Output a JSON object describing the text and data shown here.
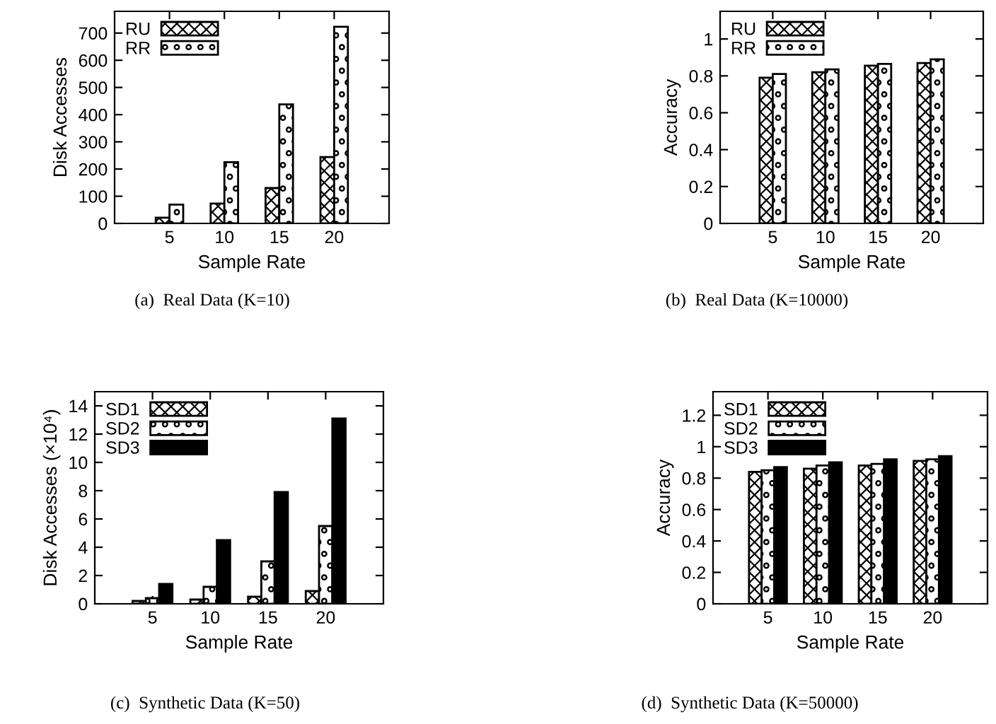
{
  "chart_data": [
    {
      "type": "bar",
      "xlabel": "Sample Rate",
      "ylabel": "Disk Accesses",
      "x": [
        5,
        10,
        15,
        20
      ],
      "xlim": [
        0,
        25
      ],
      "xticks": [
        5,
        10,
        15,
        20
      ],
      "ylim": [
        0,
        780
      ],
      "yticks": [
        0,
        100,
        200,
        300,
        400,
        500,
        600,
        700
      ],
      "grid": false,
      "legend": "top left",
      "annotations": [
        "(a)  Real Data (K=10)"
      ],
      "series": [
        {
          "name": "RU",
          "color": "#000000",
          "values": [
            21,
            73,
            130,
            244
          ]
        },
        {
          "name": "RR",
          "color": "#000000",
          "values": [
            69,
            225,
            438,
            723
          ]
        }
      ]
    },
    {
      "type": "bar",
      "xlabel": "Sample Rate",
      "ylabel": "Accuracy",
      "x": [
        5,
        10,
        15,
        20
      ],
      "xlim": [
        0,
        25
      ],
      "xticks": [
        5,
        10,
        15,
        20
      ],
      "ylim": [
        0,
        1.15
      ],
      "yticks": [
        0,
        0.2,
        0.4,
        0.6,
        0.8,
        1
      ],
      "grid": false,
      "legend": "top left",
      "annotations": [
        "(b)  Real Data (K=10000)"
      ],
      "series": [
        {
          "name": "RU",
          "color": "#000000",
          "values": [
            0.79,
            0.82,
            0.855,
            0.87
          ]
        },
        {
          "name": "RR",
          "color": "#000000",
          "values": [
            0.81,
            0.835,
            0.865,
            0.89
          ]
        }
      ]
    },
    {
      "type": "bar",
      "xlabel": "Sample Rate",
      "ylabel": "Disk Accesses (×10⁴)",
      "x": [
        5,
        10,
        15,
        20
      ],
      "xlim": [
        0,
        25
      ],
      "xticks": [
        5,
        10,
        15,
        20
      ],
      "ylim": [
        0,
        15
      ],
      "yticks": [
        0,
        2,
        4,
        6,
        8,
        10,
        12,
        14
      ],
      "grid": false,
      "legend": "top left",
      "annotations": [
        "(c)  Synthetic Data (K=50)"
      ],
      "series": [
        {
          "name": "SD1",
          "color": "#000000",
          "values": [
            0.2,
            0.3,
            0.5,
            0.9
          ]
        },
        {
          "name": "SD2",
          "color": "#000000",
          "values": [
            0.4,
            1.2,
            3,
            5.5
          ]
        },
        {
          "name": "SD3",
          "color": "#000000",
          "values": [
            1.4,
            4.5,
            7.9,
            13.1
          ]
        }
      ]
    },
    {
      "type": "bar",
      "xlabel": "Sample Rate",
      "ylabel": "Accuracy",
      "x": [
        5,
        10,
        15,
        20
      ],
      "xlim": [
        0,
        25
      ],
      "xticks": [
        5,
        10,
        15,
        20
      ],
      "ylim": [
        0,
        1.35
      ],
      "yticks": [
        0,
        0.2,
        0.4,
        0.6,
        0.8,
        1,
        1.2
      ],
      "grid": false,
      "legend": "top left",
      "annotations": [
        "(d)  Synthetic Data (K=50000)"
      ],
      "series": [
        {
          "name": "SD1",
          "color": "#000000",
          "values": [
            0.84,
            0.86,
            0.88,
            0.91
          ]
        },
        {
          "name": "SD2",
          "color": "#000000",
          "values": [
            0.85,
            0.88,
            0.89,
            0.92
          ]
        },
        {
          "name": "SD3",
          "color": "#000000",
          "values": [
            0.87,
            0.9,
            0.92,
            0.94
          ]
        }
      ]
    }
  ]
}
